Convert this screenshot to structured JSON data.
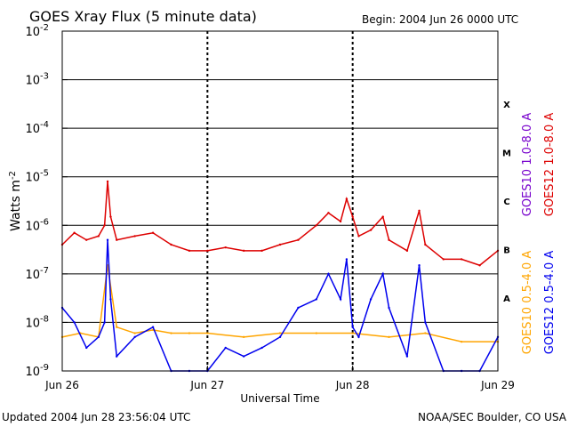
{
  "chart_data": {
    "type": "line",
    "title": "GOES Xray Flux (5 minute data)",
    "begin_label": "Begin:  2004 Jun 26 0000 UTC",
    "xlabel": "Universal Time",
    "ylabel": "Watts m",
    "ylabel_exponent": "-2",
    "yscale": "log",
    "ylim": [
      1e-09,
      0.01
    ],
    "xlim": [
      "2004-06-26 00:00",
      "2004-06-29 00:00"
    ],
    "x_ticks": [
      "Jun 26",
      "Jun 27",
      "Jun 28",
      "Jun 29"
    ],
    "y_ticks": [
      {
        "base": "10",
        "exp": "-9"
      },
      {
        "base": "10",
        "exp": "-8"
      },
      {
        "base": "10",
        "exp": "-7"
      },
      {
        "base": "10",
        "exp": "-6"
      },
      {
        "base": "10",
        "exp": "-5"
      },
      {
        "base": "10",
        "exp": "-4"
      },
      {
        "base": "10",
        "exp": "-3"
      },
      {
        "base": "10",
        "exp": "-2"
      }
    ],
    "flare_classes": [
      "A",
      "B",
      "C",
      "M",
      "X"
    ],
    "grid": true,
    "series": [
      {
        "name": "GOES12 1.0-8.0 A",
        "color": "#dd0000",
        "x": [
          "2004-06-26 00:00",
          "2004-06-26 02:00",
          "2004-06-26 04:00",
          "2004-06-26 06:00",
          "2004-06-26 07:00",
          "2004-06-26 07:30",
          "2004-06-26 08:00",
          "2004-06-26 09:00",
          "2004-06-26 12:00",
          "2004-06-26 15:00",
          "2004-06-26 18:00",
          "2004-06-26 21:00",
          "2004-06-27 00:00",
          "2004-06-27 03:00",
          "2004-06-27 06:00",
          "2004-06-27 09:00",
          "2004-06-27 12:00",
          "2004-06-27 15:00",
          "2004-06-27 18:00",
          "2004-06-27 20:00",
          "2004-06-27 22:00",
          "2004-06-27 23:00",
          "2004-06-28 00:00",
          "2004-06-28 01:00",
          "2004-06-28 03:00",
          "2004-06-28 05:00",
          "2004-06-28 06:00",
          "2004-06-28 09:00",
          "2004-06-28 11:00",
          "2004-06-28 12:00",
          "2004-06-28 15:00",
          "2004-06-28 18:00",
          "2004-06-28 21:00",
          "2004-06-29 00:00"
        ],
        "values": [
          4e-07,
          7e-07,
          5e-07,
          6e-07,
          1e-06,
          8e-06,
          1.5e-06,
          5e-07,
          6e-07,
          7e-07,
          4e-07,
          3e-07,
          3e-07,
          3.5e-07,
          3e-07,
          3e-07,
          4e-07,
          5e-07,
          1e-06,
          1.8e-06,
          1.2e-06,
          3.5e-06,
          1.5e-06,
          6e-07,
          8e-07,
          1.5e-06,
          5e-07,
          3e-07,
          2e-06,
          4e-07,
          2e-07,
          2e-07,
          1.5e-07,
          3e-07
        ]
      },
      {
        "name": "GOES10 1.0-8.0 A",
        "color": "#7700cc",
        "x": [],
        "values": []
      },
      {
        "name": "GOES10 0.5-4.0 A",
        "color": "#ffa500",
        "x": [
          "2004-06-26 00:00",
          "2004-06-26 03:00",
          "2004-06-26 06:00",
          "2004-06-26 07:30",
          "2004-06-26 09:00",
          "2004-06-26 12:00",
          "2004-06-26 15:00",
          "2004-06-26 18:00",
          "2004-06-26 21:00",
          "2004-06-27 00:00",
          "2004-06-27 06:00",
          "2004-06-27 12:00",
          "2004-06-27 18:00",
          "2004-06-28 00:00",
          "2004-06-28 06:00",
          "2004-06-28 12:00",
          "2004-06-28 18:00",
          "2004-06-29 00:00"
        ],
        "values": [
          5e-09,
          6e-09,
          5e-09,
          1.5e-07,
          8e-09,
          6e-09,
          7e-09,
          6e-09,
          6e-09,
          6e-09,
          5e-09,
          6e-09,
          6e-09,
          6e-09,
          5e-09,
          6e-09,
          4e-09,
          4e-09
        ]
      },
      {
        "name": "GOES12 0.5-4.0 A",
        "color": "#0000ee",
        "x": [
          "2004-06-26 00:00",
          "2004-06-26 02:00",
          "2004-06-26 04:00",
          "2004-06-26 06:00",
          "2004-06-26 07:00",
          "2004-06-26 07:30",
          "2004-06-26 08:00",
          "2004-06-26 09:00",
          "2004-06-26 12:00",
          "2004-06-26 15:00",
          "2004-06-26 18:00",
          "2004-06-26 21:00",
          "2004-06-27 00:00",
          "2004-06-27 03:00",
          "2004-06-27 06:00",
          "2004-06-27 09:00",
          "2004-06-27 12:00",
          "2004-06-27 15:00",
          "2004-06-27 18:00",
          "2004-06-27 20:00",
          "2004-06-27 22:00",
          "2004-06-27 23:00",
          "2004-06-28 00:00",
          "2004-06-28 01:00",
          "2004-06-28 03:00",
          "2004-06-28 05:00",
          "2004-06-28 06:00",
          "2004-06-28 09:00",
          "2004-06-28 11:00",
          "2004-06-28 12:00",
          "2004-06-28 15:00",
          "2004-06-28 18:00",
          "2004-06-28 21:00",
          "2004-06-29 00:00"
        ],
        "values": [
          2e-08,
          1e-08,
          3e-09,
          5e-09,
          1e-08,
          5e-07,
          3e-08,
          2e-09,
          5e-09,
          8e-09,
          1e-09,
          1e-09,
          1e-09,
          3e-09,
          2e-09,
          3e-09,
          5e-09,
          2e-08,
          3e-08,
          1e-07,
          3e-08,
          2e-07,
          8e-09,
          5e-09,
          3e-08,
          1e-07,
          2e-08,
          2e-09,
          1.5e-07,
          1e-08,
          1e-09,
          1e-09,
          1e-09,
          5e-09
        ]
      }
    ]
  },
  "footer": {
    "updated": "Updated 2004 Jun 28 23:56:04 UTC",
    "credit": "NOAA/SEC Boulder, CO USA"
  },
  "colors": {
    "frame": "#000000",
    "background": "#ffffff"
  }
}
